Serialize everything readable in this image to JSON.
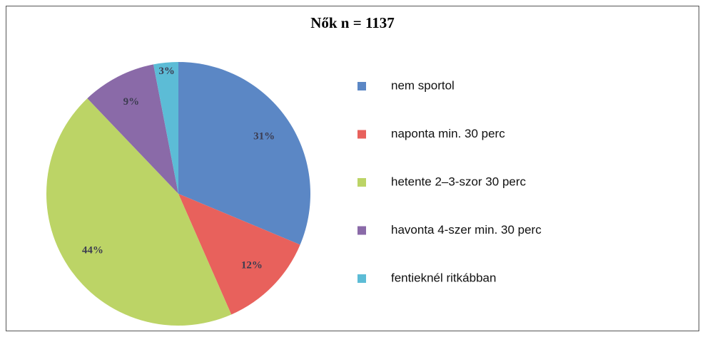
{
  "chart_data": {
    "type": "pie",
    "title": "Nők n = 1137",
    "categories": [
      "nem sportol",
      "naponta min. 30 perc",
      "hetente 2–3-szor 30 perc",
      "havonta 4-szer min. 30 perc",
      "fentieknél ritkábban"
    ],
    "values": [
      31,
      12,
      44,
      9,
      3
    ],
    "value_labels": [
      "31%",
      "12%",
      "44%",
      "9%",
      "3%"
    ],
    "colors": [
      "#5b87c5",
      "#e8615c",
      "#bcd466",
      "#8a6aa8",
      "#5cbcd6"
    ],
    "legend": "right"
  }
}
